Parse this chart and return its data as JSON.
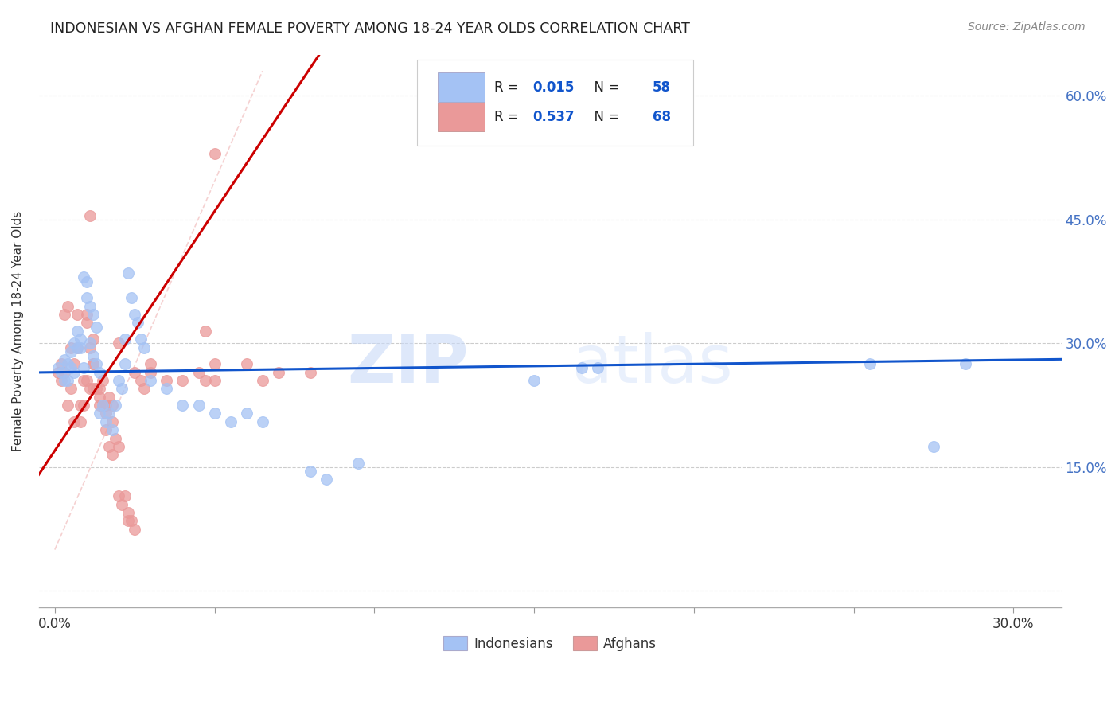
{
  "title": "INDONESIAN VS AFGHAN FEMALE POVERTY AMONG 18-24 YEAR OLDS CORRELATION CHART",
  "source": "Source: ZipAtlas.com",
  "ylabel": "Female Poverty Among 18-24 Year Olds",
  "xlim": [
    -0.005,
    0.315
  ],
  "ylim": [
    -0.02,
    0.65
  ],
  "indonesian_color": "#a4c2f4",
  "afghan_color": "#ea9999",
  "indonesian_line_color": "#1155cc",
  "afghan_line_color": "#cc0000",
  "diagonal_color": "#f4cccc",
  "watermark_color": "#c9daf8",
  "indonesian_R": "0.015",
  "indonesian_N": "58",
  "afghan_R": "0.537",
  "afghan_N": "68",
  "legend_R_color": "#1155cc",
  "legend_N_color": "#1155cc",
  "background_color": "#ffffff",
  "grid_color": "#cccccc",
  "indonesian_scatter": [
    [
      0.001,
      0.27
    ],
    [
      0.002,
      0.265
    ],
    [
      0.003,
      0.28
    ],
    [
      0.003,
      0.255
    ],
    [
      0.004,
      0.275
    ],
    [
      0.004,
      0.255
    ],
    [
      0.005,
      0.29
    ],
    [
      0.005,
      0.27
    ],
    [
      0.006,
      0.265
    ],
    [
      0.006,
      0.3
    ],
    [
      0.007,
      0.315
    ],
    [
      0.007,
      0.295
    ],
    [
      0.008,
      0.305
    ],
    [
      0.008,
      0.295
    ],
    [
      0.009,
      0.38
    ],
    [
      0.009,
      0.27
    ],
    [
      0.01,
      0.375
    ],
    [
      0.01,
      0.355
    ],
    [
      0.011,
      0.345
    ],
    [
      0.011,
      0.3
    ],
    [
      0.012,
      0.335
    ],
    [
      0.012,
      0.285
    ],
    [
      0.013,
      0.32
    ],
    [
      0.013,
      0.275
    ],
    [
      0.014,
      0.265
    ],
    [
      0.014,
      0.215
    ],
    [
      0.015,
      0.225
    ],
    [
      0.016,
      0.205
    ],
    [
      0.017,
      0.215
    ],
    [
      0.018,
      0.195
    ],
    [
      0.019,
      0.225
    ],
    [
      0.02,
      0.255
    ],
    [
      0.021,
      0.245
    ],
    [
      0.022,
      0.305
    ],
    [
      0.022,
      0.275
    ],
    [
      0.023,
      0.385
    ],
    [
      0.024,
      0.355
    ],
    [
      0.025,
      0.335
    ],
    [
      0.026,
      0.325
    ],
    [
      0.027,
      0.305
    ],
    [
      0.028,
      0.295
    ],
    [
      0.03,
      0.255
    ],
    [
      0.035,
      0.245
    ],
    [
      0.04,
      0.225
    ],
    [
      0.045,
      0.225
    ],
    [
      0.05,
      0.215
    ],
    [
      0.055,
      0.205
    ],
    [
      0.06,
      0.215
    ],
    [
      0.065,
      0.205
    ],
    [
      0.08,
      0.145
    ],
    [
      0.085,
      0.135
    ],
    [
      0.095,
      0.155
    ],
    [
      0.15,
      0.255
    ],
    [
      0.17,
      0.27
    ],
    [
      0.165,
      0.27
    ],
    [
      0.255,
      0.275
    ],
    [
      0.275,
      0.175
    ],
    [
      0.285,
      0.275
    ]
  ],
  "afghan_scatter": [
    [
      0.001,
      0.265
    ],
    [
      0.002,
      0.255
    ],
    [
      0.002,
      0.275
    ],
    [
      0.003,
      0.265
    ],
    [
      0.003,
      0.335
    ],
    [
      0.004,
      0.345
    ],
    [
      0.004,
      0.225
    ],
    [
      0.005,
      0.295
    ],
    [
      0.005,
      0.245
    ],
    [
      0.006,
      0.275
    ],
    [
      0.006,
      0.205
    ],
    [
      0.007,
      0.335
    ],
    [
      0.007,
      0.295
    ],
    [
      0.008,
      0.225
    ],
    [
      0.008,
      0.205
    ],
    [
      0.009,
      0.255
    ],
    [
      0.009,
      0.225
    ],
    [
      0.01,
      0.325
    ],
    [
      0.01,
      0.335
    ],
    [
      0.01,
      0.255
    ],
    [
      0.011,
      0.455
    ],
    [
      0.011,
      0.295
    ],
    [
      0.011,
      0.245
    ],
    [
      0.012,
      0.275
    ],
    [
      0.012,
      0.275
    ],
    [
      0.012,
      0.245
    ],
    [
      0.013,
      0.245
    ],
    [
      0.014,
      0.235
    ],
    [
      0.014,
      0.225
    ],
    [
      0.015,
      0.255
    ],
    [
      0.015,
      0.225
    ],
    [
      0.016,
      0.225
    ],
    [
      0.016,
      0.195
    ],
    [
      0.017,
      0.235
    ],
    [
      0.017,
      0.175
    ],
    [
      0.018,
      0.205
    ],
    [
      0.018,
      0.165
    ],
    [
      0.019,
      0.185
    ],
    [
      0.02,
      0.175
    ],
    [
      0.02,
      0.115
    ],
    [
      0.021,
      0.105
    ],
    [
      0.022,
      0.115
    ],
    [
      0.023,
      0.085
    ],
    [
      0.023,
      0.095
    ],
    [
      0.024,
      0.085
    ],
    [
      0.025,
      0.075
    ],
    [
      0.025,
      0.265
    ],
    [
      0.027,
      0.255
    ],
    [
      0.028,
      0.245
    ],
    [
      0.03,
      0.275
    ],
    [
      0.03,
      0.265
    ],
    [
      0.035,
      0.255
    ],
    [
      0.04,
      0.255
    ],
    [
      0.045,
      0.265
    ],
    [
      0.047,
      0.315
    ],
    [
      0.047,
      0.255
    ],
    [
      0.05,
      0.53
    ],
    [
      0.05,
      0.275
    ],
    [
      0.05,
      0.255
    ],
    [
      0.06,
      0.275
    ],
    [
      0.065,
      0.255
    ],
    [
      0.07,
      0.265
    ],
    [
      0.08,
      0.265
    ],
    [
      0.012,
      0.305
    ],
    [
      0.014,
      0.245
    ],
    [
      0.016,
      0.215
    ],
    [
      0.018,
      0.225
    ],
    [
      0.02,
      0.3
    ]
  ]
}
